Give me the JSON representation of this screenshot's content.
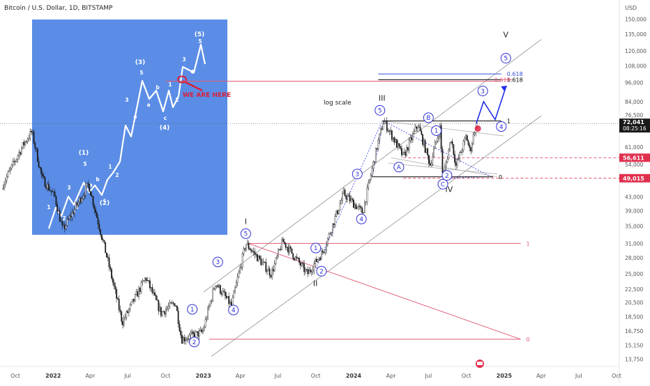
{
  "header": {
    "symbol_title": "Bitcoin / U.S. Dollar, 1D, BITSTAMP"
  },
  "chart_data": {
    "type": "candlestick",
    "title": "Bitcoin / U.S. Dollar, 1D, BITSTAMP",
    "currency": "USD",
    "scale": "log",
    "scale_note": "log scale",
    "y_ticks": [
      150000,
      135000,
      120000,
      108000,
      96000,
      84000,
      76500,
      61000,
      54000,
      43000,
      39000,
      35000,
      31000,
      28000,
      25000,
      22500,
      20500,
      18500,
      16750,
      15150,
      13750
    ],
    "x_ticks": [
      {
        "label": "Oct",
        "date": "2021-10-01"
      },
      {
        "label": "2022",
        "date": "2022-01-01"
      },
      {
        "label": "Apr",
        "date": "2022-04-01"
      },
      {
        "label": "Jul",
        "date": "2022-07-01"
      },
      {
        "label": "Oct",
        "date": "2022-10-01"
      },
      {
        "label": "2023",
        "date": "2023-01-01"
      },
      {
        "label": "Apr",
        "date": "2023-04-01"
      },
      {
        "label": "Jul",
        "date": "2023-07-01"
      },
      {
        "label": "Oct",
        "date": "2023-10-01"
      },
      {
        "label": "2024",
        "date": "2024-01-01"
      },
      {
        "label": "Apr",
        "date": "2024-04-01"
      },
      {
        "label": "Jul",
        "date": "2024-07-01"
      },
      {
        "label": "Oct",
        "date": "2024-10-01"
      },
      {
        "label": "2025",
        "date": "2025-01-01"
      },
      {
        "label": "Apr",
        "date": "2025-04-01"
      },
      {
        "label": "Jul",
        "date": "2025-07-01"
      },
      {
        "label": "Oct",
        "date": "2025-10-01"
      }
    ],
    "price_path": [
      [
        "2021-09-01",
        47000
      ],
      [
        "2021-10-20",
        62000
      ],
      [
        "2021-11-10",
        68000
      ],
      [
        "2021-12-05",
        49000
      ],
      [
        "2022-01-05",
        43000
      ],
      [
        "2022-01-24",
        34000
      ],
      [
        "2022-03-28",
        47000
      ],
      [
        "2022-05-12",
        28000
      ],
      [
        "2022-06-18",
        17800
      ],
      [
        "2022-08-14",
        24400
      ],
      [
        "2022-09-20",
        19000
      ],
      [
        "2022-10-25",
        20500
      ],
      [
        "2022-11-09",
        15800
      ],
      [
        "2022-12-30",
        16600
      ],
      [
        "2023-01-30",
        23500
      ],
      [
        "2023-03-10",
        20000
      ],
      [
        "2023-04-14",
        31000
      ],
      [
        "2023-06-15",
        25000
      ],
      [
        "2023-07-13",
        31500
      ],
      [
        "2023-09-11",
        25000
      ],
      [
        "2023-10-20",
        29500
      ],
      [
        "2023-12-08",
        44000
      ],
      [
        "2024-01-23",
        38500
      ],
      [
        "2024-02-28",
        62000
      ],
      [
        "2024-03-14",
        73500
      ],
      [
        "2024-05-01",
        57000
      ],
      [
        "2024-06-05",
        71500
      ],
      [
        "2024-07-05",
        54000
      ],
      [
        "2024-07-29",
        70000
      ],
      [
        "2024-08-05",
        49000
      ],
      [
        "2024-08-25",
        65000
      ],
      [
        "2024-09-06",
        53500
      ],
      [
        "2024-10-01",
        66000
      ],
      [
        "2024-10-10",
        59000
      ],
      [
        "2024-10-21",
        69000
      ],
      [
        "2024-10-29",
        72041
      ]
    ],
    "last_price": {
      "value": "72,041",
      "countdown": "08:25:16"
    },
    "price_markers": [
      {
        "value": "56,611",
        "price": 56611
      },
      {
        "value": "49,015",
        "price": 49015
      }
    ],
    "horizontal_levels": [
      {
        "label": "1",
        "price": 73300,
        "from": "2024-03-10",
        "to": "2024-12-25",
        "color": "#000000"
      },
      {
        "label": "0",
        "price": 49500,
        "from": "2024-02-15",
        "to": "2024-12-05",
        "color": "#000000"
      },
      {
        "label": "1",
        "price": 31000,
        "from": "2023-04-20",
        "to": "2025-02-10",
        "color": "#e05a75"
      },
      {
        "label": "0",
        "price": 15800,
        "from": "2023-01-15",
        "to": "2025-02-10",
        "color": "#e05a75"
      },
      {
        "label": "0.618",
        "price": 102000,
        "from": "2024-03-01",
        "to": "2024-12-25",
        "color": "#2f4fd8"
      },
      {
        "label": "1.618",
        "price": 98000,
        "from": "2024-03-01",
        "to": "2024-12-25",
        "color": "#000000"
      },
      {
        "label": "0.618",
        "price": 98000,
        "from": "2024-12-25",
        "to": "2025-01-20",
        "color": "#e05a75"
      }
    ],
    "red_hline": {
      "price": 97000,
      "from": "2022-10-01",
      "to": "2024-12-25"
    },
    "wave_labels_main": [
      {
        "label": "I",
        "date": "2023-04-14",
        "price": 35500
      },
      {
        "label": "II",
        "date": "2023-09-30",
        "price": 23000
      },
      {
        "label": "III",
        "date": "2024-03-10",
        "price": 84500
      },
      {
        "label": "IV",
        "date": "2024-08-20",
        "price": 44500
      },
      {
        "label": "V",
        "date": "2025-01-05",
        "price": 132000
      }
    ],
    "wave_labels_circled": [
      {
        "label": "1",
        "date": "2022-12-05",
        "price": 19500
      },
      {
        "label": "2",
        "date": "2022-12-10",
        "price": 15500
      },
      {
        "label": "3",
        "date": "2023-02-05",
        "price": 27200
      },
      {
        "label": "4",
        "date": "2023-03-15",
        "price": 19400
      },
      {
        "label": "5",
        "date": "2023-04-14",
        "price": 33200
      },
      {
        "label": "1",
        "date": "2023-10-01",
        "price": 30000
      },
      {
        "label": "2",
        "date": "2023-10-15",
        "price": 25500
      },
      {
        "label": "3",
        "date": "2024-01-10",
        "price": 50500
      },
      {
        "label": "4",
        "date": "2024-01-20",
        "price": 36800
      },
      {
        "label": "5",
        "date": "2024-03-05",
        "price": 79000
      },
      {
        "label": "A",
        "date": "2024-04-20",
        "price": 53000
      },
      {
        "label": "B",
        "date": "2024-07-01",
        "price": 75000
      },
      {
        "label": "1",
        "date": "2024-07-20",
        "price": 68500
      },
      {
        "label": "C",
        "date": "2024-08-05",
        "price": 47000
      },
      {
        "label": "2",
        "date": "2024-08-15",
        "price": 50000
      },
      {
        "label": "3",
        "date": "2024-11-10",
        "price": 90500
      },
      {
        "label": "4",
        "date": "2024-12-25",
        "price": 70500
      },
      {
        "label": "5",
        "date": "2025-01-05",
        "price": 114000
      }
    ],
    "inset": {
      "waves": [
        {
          "label": "1"
        },
        {
          "label": "2"
        },
        {
          "label": "3"
        },
        {
          "label": "4"
        },
        {
          "label": "5"
        },
        {
          "label": "(1)"
        },
        {
          "label": "a"
        },
        {
          "label": "b"
        },
        {
          "label": "c"
        },
        {
          "label": "(2)"
        },
        {
          "label": "1"
        },
        {
          "label": "2"
        },
        {
          "label": "3"
        },
        {
          "label": "4"
        },
        {
          "label": "5"
        },
        {
          "label": "(3)"
        },
        {
          "label": "a"
        },
        {
          "label": "b"
        },
        {
          "label": "c"
        },
        {
          "label": "(4)"
        },
        {
          "label": "1"
        },
        {
          "label": "2"
        },
        {
          "label": "3"
        },
        {
          "label": "4"
        },
        {
          "label": "5"
        },
        {
          "label": "(5)"
        }
      ],
      "we_are_here": "WE ARE HERE"
    }
  },
  "colors": {
    "candle": "#1a1a1a",
    "inset_bg": "#5b8de6",
    "wave_circle": "#2f31d6",
    "fib_red": "#e05a75",
    "projection": "#1f2ee8",
    "channel": "#9a9a9a",
    "axis_text": "#555555"
  }
}
